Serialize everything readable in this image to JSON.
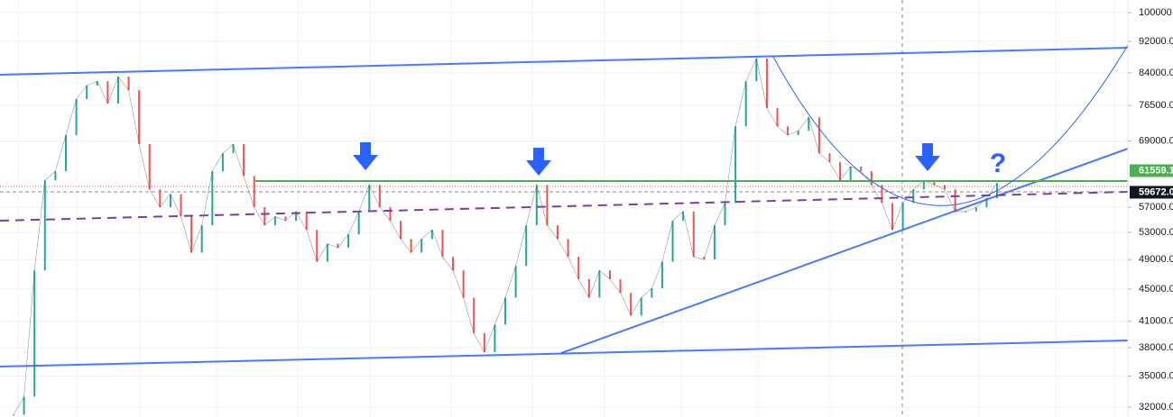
{
  "chart_data": {
    "type": "line",
    "log_scale": true,
    "grid": true,
    "up_color": "#26a69a",
    "down_color": "#ef5350",
    "values": [
      31300,
      32970,
      47490,
      61600,
      63250,
      70200,
      77900,
      81000,
      82000,
      76900,
      83100,
      79900,
      68400,
      60000,
      57000,
      59200,
      55500,
      50000,
      54100,
      63250,
      66600,
      68400,
      62400,
      57000,
      54100,
      55500,
      54800,
      56300,
      53400,
      48700,
      51300,
      50700,
      52700,
      56300,
      60800,
      57000,
      54800,
      52000,
      50000,
      52000,
      53400,
      49400,
      47490,
      43900,
      39600,
      37500,
      40600,
      43900,
      48100,
      54100,
      60800,
      54100,
      52000,
      49400,
      46300,
      43900,
      47490,
      46300,
      44500,
      41700,
      43900,
      45100,
      48700,
      54800,
      56300,
      49400,
      49000,
      54100,
      57700,
      72000,
      82000,
      87600,
      75900,
      72000,
      70200,
      71100,
      73900,
      66600,
      64900,
      61600,
      64100,
      63250,
      60800,
      57700,
      53400,
      57700,
      60000,
      61600,
      60800,
      60000,
      56300,
      56300,
      57000,
      58500,
      61100
    ],
    "ylim": [
      31100,
      103700
    ],
    "yticks": [
      {
        "value": 100000,
        "label": "100000.0"
      },
      {
        "value": 92000,
        "label": "92000.0"
      },
      {
        "value": 84000,
        "label": "84000.0"
      },
      {
        "value": 76500,
        "label": "76500.0"
      },
      {
        "value": 69000,
        "label": "69000.0"
      },
      {
        "value": 57000,
        "label": "57000.0"
      },
      {
        "value": 53000,
        "label": "53000.0"
      },
      {
        "value": 49000,
        "label": "49000.0"
      },
      {
        "value": 45000,
        "label": "45000.0"
      },
      {
        "value": 41000,
        "label": "41000.0"
      },
      {
        "value": 38000,
        "label": "38000.0"
      },
      {
        "value": 35000,
        "label": "35000.0"
      },
      {
        "value": 32000,
        "label": "32000.0"
      }
    ],
    "price_tags": [
      {
        "value": 61559.1,
        "color": "#4caf50"
      },
      {
        "value": 59672,
        "label": "59672.0",
        "color": "#131722"
      }
    ]
  }
}
